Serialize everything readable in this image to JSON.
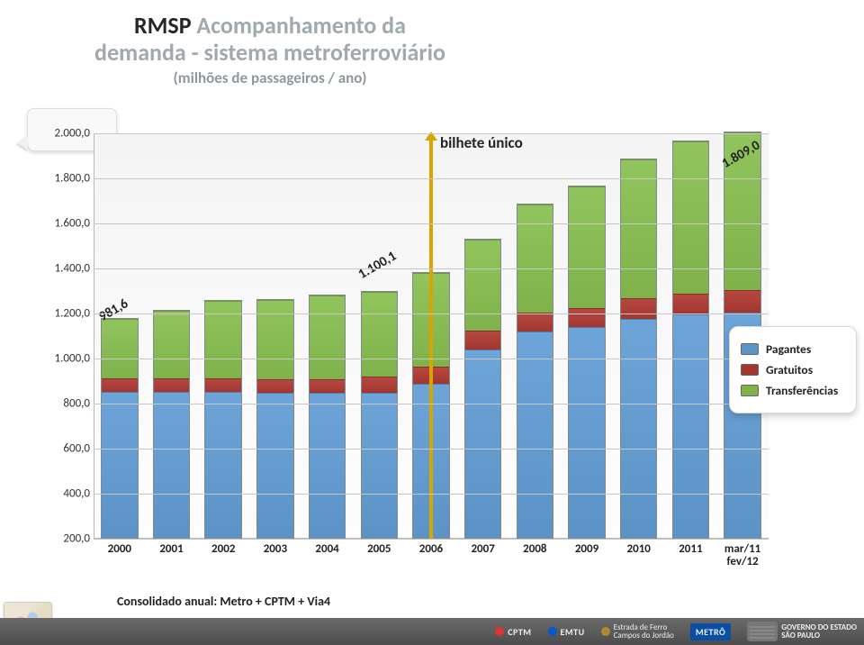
{
  "title": {
    "line1_dark": "RMSP",
    "line1_light": " Acompanhamento da",
    "line2_light": "demanda - sistema metroferroviário",
    "subtitle": "(milhões de passageiros / ano)"
  },
  "chart": {
    "type": "stacked-bar",
    "background_color": "#f6f6f6",
    "grid_color": "#c7c7c7",
    "y": {
      "min": 200,
      "max": 2000,
      "ticks": [
        "2.000,0",
        "1.800,0",
        "1.600,0",
        "1.400,0",
        "1.200,0",
        "1.000,0",
        "800,0",
        "600,0",
        "400,0",
        "200,0"
      ],
      "tick_values": [
        2000,
        1800,
        1600,
        1400,
        1200,
        1000,
        800,
        600,
        400,
        200
      ],
      "label_fontsize": 13
    },
    "stack_order": [
      "pagantes",
      "gratuitos",
      "transferencias"
    ],
    "colors": {
      "pagantes": "#5b93c7",
      "gratuitos": "#a3362f",
      "transferencias": "#7fb24b"
    },
    "series": [
      {
        "x": "2000",
        "pagantes": 655,
        "gratuitos": 60,
        "transferencias": 266
      },
      {
        "x": "2001",
        "pagantes": 655,
        "gratuitos": 60,
        "transferencias": 300
      },
      {
        "x": "2002",
        "pagantes": 655,
        "gratuitos": 60,
        "transferencias": 345
      },
      {
        "x": "2003",
        "pagantes": 650,
        "gratuitos": 60,
        "transferencias": 355
      },
      {
        "x": "2004",
        "pagantes": 650,
        "gratuitos": 60,
        "transferencias": 375
      },
      {
        "x": "2005",
        "pagantes": 650,
        "gratuitos": 70,
        "transferencias": 380
      },
      {
        "x": "2006",
        "pagantes": 690,
        "gratuitos": 75,
        "transferencias": 420
      },
      {
        "x": "2007",
        "pagantes": 840,
        "gratuitos": 85,
        "transferencias": 408
      },
      {
        "x": "2008",
        "pagantes": 920,
        "gratuitos": 85,
        "transferencias": 485
      },
      {
        "x": "2009",
        "pagantes": 940,
        "gratuitos": 85,
        "transferencias": 545
      },
      {
        "x": "2010",
        "pagantes": 975,
        "gratuitos": 95,
        "transferencias": 620
      },
      {
        "x": "2011",
        "pagantes": 995,
        "gratuitos": 95,
        "transferencias": 680
      },
      {
        "x": "mar/11\nfev/12",
        "pagantes": 1005,
        "gratuitos": 100,
        "transferencias": 704
      }
    ],
    "bar_width": 0.72,
    "annotations": {
      "bilhete_unico": {
        "text": "bilhete único",
        "at_index": 6,
        "line_color": "#d9a400"
      },
      "labels": [
        {
          "text": "981,6",
          "at_index": 0,
          "y_value": 1220
        },
        {
          "text": "1.100,1",
          "at_index": 5,
          "y_value": 1410
        },
        {
          "text": "1.809,0",
          "at_index": 12,
          "y_value": 1900
        }
      ],
      "label_fontsize": 15
    }
  },
  "legend": {
    "items": [
      {
        "key": "pagantes",
        "label": "Pagantes"
      },
      {
        "key": "gratuitos",
        "label": "Gratuitos"
      },
      {
        "key": "transferencias",
        "label": "Transferências"
      }
    ]
  },
  "footer_note": "Consolidado anual: Metro + CPTM + Via4",
  "bottom_logos": {
    "cptm": "CPTM",
    "emtu": "EMTU",
    "efcj": "Estrada de Ferro\nCampos do Jordão",
    "metro": "METRÔ",
    "gov": "GOVERNO DO ESTADO\nSÃO PAULO"
  }
}
